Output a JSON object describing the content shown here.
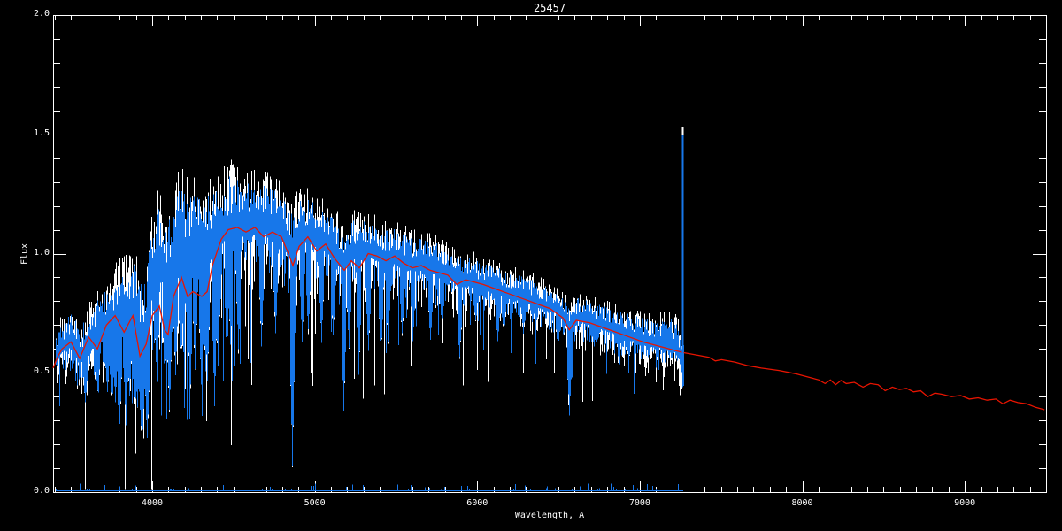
{
  "chart_data": {
    "type": "line",
    "title": "25457",
    "xlabel": "Wavelength, A",
    "ylabel": "Flux",
    "xlim": [
      3390,
      9500
    ],
    "ylim": [
      0.0,
      2.0
    ],
    "grid": false,
    "legend": "none",
    "background_color": "#000000",
    "axis_color": "#ffffff",
    "text_color": "#ffffff",
    "x_major_ticks": [
      {
        "value": 4000,
        "label": "4000"
      },
      {
        "value": 5000,
        "label": "5000"
      },
      {
        "value": 6000,
        "label": "6000"
      },
      {
        "value": 7000,
        "label": "7000"
      },
      {
        "value": 8000,
        "label": "8000"
      },
      {
        "value": 9000,
        "label": "9000"
      }
    ],
    "y_major_ticks": [
      {
        "value": 0.0,
        "label": "0.0"
      },
      {
        "value": 0.5,
        "label": "0.5"
      },
      {
        "value": 1.0,
        "label": "1.0"
      },
      {
        "value": 1.5,
        "label": "1.5"
      },
      {
        "value": 2.0,
        "label": "2.0"
      }
    ],
    "x_minor_step": 100,
    "y_minor_step": 0.1,
    "series": [
      {
        "name": "observed-spectrum",
        "style": "noisy",
        "color": "#1777ea",
        "underlay_color": "#ffffff",
        "underlay_amplitude_scale": 1.35,
        "x_range": [
          3405,
          7268
        ],
        "continuum": [
          [
            3405,
            0.58
          ],
          [
            3450,
            0.62
          ],
          [
            3500,
            0.64
          ],
          [
            3550,
            0.57
          ],
          [
            3600,
            0.62
          ],
          [
            3650,
            0.66
          ],
          [
            3700,
            0.7
          ],
          [
            3750,
            0.72
          ],
          [
            3800,
            0.77
          ],
          [
            3850,
            0.74
          ],
          [
            3900,
            0.78
          ],
          [
            3935,
            0.62
          ],
          [
            3970,
            0.72
          ],
          [
            4000,
            0.92
          ],
          [
            4050,
            1.0
          ],
          [
            4100,
            0.9
          ],
          [
            4150,
            1.0
          ],
          [
            4200,
            1.02
          ],
          [
            4250,
            1.0
          ],
          [
            4300,
            1.02
          ],
          [
            4350,
            1.03
          ],
          [
            4400,
            1.08
          ],
          [
            4450,
            1.12
          ],
          [
            4500,
            1.15
          ],
          [
            4550,
            1.13
          ],
          [
            4600,
            1.14
          ],
          [
            4650,
            1.12
          ],
          [
            4700,
            1.13
          ],
          [
            4750,
            1.12
          ],
          [
            4800,
            1.1
          ],
          [
            4861,
            1.0
          ],
          [
            4900,
            1.08
          ],
          [
            4950,
            1.09
          ],
          [
            5000,
            1.07
          ],
          [
            5050,
            1.06
          ],
          [
            5100,
            1.03
          ],
          [
            5175,
            0.98
          ],
          [
            5250,
            1.02
          ],
          [
            5300,
            1.01
          ],
          [
            5350,
            1.02
          ],
          [
            5400,
            1.0
          ],
          [
            5450,
            0.99
          ],
          [
            5500,
            0.99
          ],
          [
            5550,
            0.97
          ],
          [
            5600,
            0.96
          ],
          [
            5650,
            0.96
          ],
          [
            5700,
            0.95
          ],
          [
            5750,
            0.94
          ],
          [
            5800,
            0.93
          ],
          [
            5850,
            0.91
          ],
          [
            5900,
            0.89
          ],
          [
            5950,
            0.89
          ],
          [
            6000,
            0.88
          ],
          [
            6100,
            0.86
          ],
          [
            6200,
            0.84
          ],
          [
            6300,
            0.82
          ],
          [
            6400,
            0.79
          ],
          [
            6500,
            0.77
          ],
          [
            6563,
            0.7
          ],
          [
            6620,
            0.74
          ],
          [
            6700,
            0.72
          ],
          [
            6800,
            0.7
          ],
          [
            6900,
            0.67
          ],
          [
            7000,
            0.65
          ],
          [
            7100,
            0.63
          ],
          [
            7160,
            0.64
          ],
          [
            7200,
            0.63
          ],
          [
            7230,
            0.6
          ],
          [
            7268,
            0.56
          ]
        ],
        "noise_amplitude": [
          [
            3405,
            0.09
          ],
          [
            3500,
            0.11
          ],
          [
            3600,
            0.13
          ],
          [
            3700,
            0.14
          ],
          [
            3800,
            0.17
          ],
          [
            3900,
            0.22
          ],
          [
            3980,
            0.24
          ],
          [
            4050,
            0.22
          ],
          [
            4150,
            0.26
          ],
          [
            4250,
            0.24
          ],
          [
            4350,
            0.22
          ],
          [
            4450,
            0.2
          ],
          [
            4550,
            0.17
          ],
          [
            4700,
            0.16
          ],
          [
            4861,
            0.16
          ],
          [
            5000,
            0.14
          ],
          [
            5200,
            0.13
          ],
          [
            5400,
            0.12
          ],
          [
            5600,
            0.11
          ],
          [
            5800,
            0.1
          ],
          [
            6000,
            0.09
          ],
          [
            6200,
            0.085
          ],
          [
            6400,
            0.08
          ],
          [
            6600,
            0.075
          ],
          [
            6800,
            0.08
          ],
          [
            7000,
            0.085
          ],
          [
            7100,
            0.09
          ],
          [
            7200,
            0.1
          ],
          [
            7268,
            0.1
          ]
        ],
        "absorption_lines": [
          [
            3588,
            0.37
          ],
          [
            3660,
            0.4
          ],
          [
            3722,
            0.4
          ],
          [
            3752,
            0.33
          ],
          [
            3772,
            0.36
          ],
          [
            3798,
            0.28
          ],
          [
            3835,
            0.27
          ],
          [
            3860,
            0.4
          ],
          [
            3889,
            0.29
          ],
          [
            3910,
            0.35
          ],
          [
            3933,
            0.17
          ],
          [
            3968,
            0.21
          ],
          [
            4026,
            0.44
          ],
          [
            4077,
            0.45
          ],
          [
            4101,
            0.32
          ],
          [
            4144,
            0.48
          ],
          [
            4173,
            0.5
          ],
          [
            4227,
            0.3
          ],
          [
            4260,
            0.5
          ],
          [
            4300,
            0.44
          ],
          [
            4325,
            0.5
          ],
          [
            4340,
            0.46
          ],
          [
            4383,
            0.35
          ],
          [
            4405,
            0.52
          ],
          [
            4455,
            0.55
          ],
          [
            4481,
            0.6
          ],
          [
            4530,
            0.58
          ],
          [
            4668,
            0.6
          ],
          [
            4755,
            0.65
          ],
          [
            4861,
            0.1
          ],
          [
            4920,
            0.62
          ],
          [
            4957,
            0.66
          ],
          [
            5041,
            0.62
          ],
          [
            5110,
            0.65
          ],
          [
            5175,
            0.34
          ],
          [
            5210,
            0.6
          ],
          [
            5270,
            0.48
          ],
          [
            5328,
            0.58
          ],
          [
            5406,
            0.55
          ],
          [
            5446,
            0.62
          ],
          [
            5535,
            0.65
          ],
          [
            5603,
            0.63
          ],
          [
            5710,
            0.62
          ],
          [
            5782,
            0.68
          ],
          [
            5890,
            0.55
          ],
          [
            5990,
            0.7
          ],
          [
            6122,
            0.62
          ],
          [
            6162,
            0.66
          ],
          [
            6280,
            0.66
          ],
          [
            6360,
            0.68
          ],
          [
            6495,
            0.6
          ],
          [
            6563,
            0.32
          ],
          [
            6717,
            0.6
          ],
          [
            6870,
            0.55
          ],
          [
            7050,
            0.56
          ],
          [
            7180,
            0.55
          ]
        ]
      },
      {
        "name": "model-spectrum",
        "style": "smooth",
        "color": "#e81400",
        "points": [
          [
            3390,
            0.52
          ],
          [
            3420,
            0.57
          ],
          [
            3445,
            0.6
          ],
          [
            3500,
            0.63
          ],
          [
            3554,
            0.56
          ],
          [
            3609,
            0.65
          ],
          [
            3663,
            0.6
          ],
          [
            3718,
            0.7
          ],
          [
            3772,
            0.74
          ],
          [
            3827,
            0.67
          ],
          [
            3881,
            0.74
          ],
          [
            3925,
            0.57
          ],
          [
            3963,
            0.62
          ],
          [
            4000,
            0.74
          ],
          [
            4044,
            0.78
          ],
          [
            4076,
            0.68
          ],
          [
            4098,
            0.66
          ],
          [
            4131,
            0.82
          ],
          [
            4180,
            0.9
          ],
          [
            4218,
            0.82
          ],
          [
            4250,
            0.84
          ],
          [
            4305,
            0.82
          ],
          [
            4338,
            0.84
          ],
          [
            4370,
            0.95
          ],
          [
            4425,
            1.06
          ],
          [
            4468,
            1.1
          ],
          [
            4523,
            1.11
          ],
          [
            4577,
            1.09
          ],
          [
            4632,
            1.11
          ],
          [
            4686,
            1.07
          ],
          [
            4740,
            1.09
          ],
          [
            4795,
            1.07
          ],
          [
            4838,
            1.0
          ],
          [
            4866,
            0.95
          ],
          [
            4904,
            1.03
          ],
          [
            4958,
            1.07
          ],
          [
            5013,
            1.01
          ],
          [
            5067,
            1.04
          ],
          [
            5122,
            0.98
          ],
          [
            5182,
            0.93
          ],
          [
            5225,
            0.97
          ],
          [
            5274,
            0.94
          ],
          [
            5329,
            1.0
          ],
          [
            5383,
            0.99
          ],
          [
            5438,
            0.97
          ],
          [
            5492,
            0.99
          ],
          [
            5547,
            0.96
          ],
          [
            5601,
            0.94
          ],
          [
            5656,
            0.95
          ],
          [
            5710,
            0.93
          ],
          [
            5765,
            0.92
          ],
          [
            5819,
            0.91
          ],
          [
            5874,
            0.87
          ],
          [
            5929,
            0.89
          ],
          [
            5983,
            0.88
          ],
          [
            6038,
            0.87
          ],
          [
            6119,
            0.85
          ],
          [
            6201,
            0.83
          ],
          [
            6283,
            0.81
          ],
          [
            6364,
            0.79
          ],
          [
            6446,
            0.77
          ],
          [
            6528,
            0.73
          ],
          [
            6566,
            0.68
          ],
          [
            6609,
            0.72
          ],
          [
            6691,
            0.71
          ],
          [
            6773,
            0.69
          ],
          [
            6854,
            0.67
          ],
          [
            6936,
            0.65
          ],
          [
            7018,
            0.63
          ],
          [
            7099,
            0.615
          ],
          [
            7181,
            0.6
          ],
          [
            7263,
            0.585
          ],
          [
            7345,
            0.575
          ],
          [
            7426,
            0.565
          ],
          [
            7465,
            0.55
          ],
          [
            7503,
            0.555
          ],
          [
            7585,
            0.545
          ],
          [
            7666,
            0.53
          ],
          [
            7748,
            0.52
          ],
          [
            7857,
            0.51
          ],
          [
            7966,
            0.495
          ],
          [
            8048,
            0.48
          ],
          [
            8102,
            0.47
          ],
          [
            8140,
            0.455
          ],
          [
            8173,
            0.47
          ],
          [
            8205,
            0.45
          ],
          [
            8238,
            0.468
          ],
          [
            8271,
            0.455
          ],
          [
            8320,
            0.46
          ],
          [
            8374,
            0.44
          ],
          [
            8418,
            0.455
          ],
          [
            8467,
            0.45
          ],
          [
            8510,
            0.425
          ],
          [
            8554,
            0.44
          ],
          [
            8597,
            0.43
          ],
          [
            8641,
            0.435
          ],
          [
            8685,
            0.42
          ],
          [
            8728,
            0.425
          ],
          [
            8772,
            0.4
          ],
          [
            8816,
            0.415
          ],
          [
            8859,
            0.41
          ],
          [
            8919,
            0.4
          ],
          [
            8974,
            0.405
          ],
          [
            9028,
            0.39
          ],
          [
            9082,
            0.395
          ],
          [
            9137,
            0.385
          ],
          [
            9191,
            0.39
          ],
          [
            9234,
            0.37
          ],
          [
            9278,
            0.385
          ],
          [
            9327,
            0.375
          ],
          [
            9381,
            0.37
          ],
          [
            9436,
            0.355
          ],
          [
            9490,
            0.345
          ]
        ]
      },
      {
        "name": "zero-level-spectrum",
        "style": "flat-noisy",
        "color": "#1777ea",
        "x_range": [
          3405,
          7268
        ],
        "level": 0.006,
        "max_spike": 0.028
      },
      {
        "name": "emission-spike",
        "style": "spike",
        "color": "#1777ea",
        "tip_color": "#ffffff",
        "x": 7263,
        "y_range": [
          0.5,
          1.5
        ],
        "tip_extra": 0.03
      }
    ]
  }
}
